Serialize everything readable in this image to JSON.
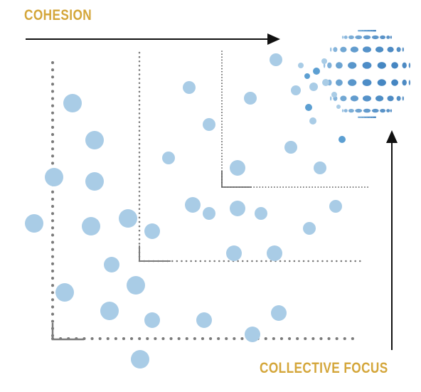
{
  "labels": {
    "cohesion": "COHESION",
    "collective_focus": "COLLECTIVE FOCUS"
  },
  "colors": {
    "label_gold": "#D4A63A",
    "dot_light_blue": "#A9CCE6",
    "sphere_blue": "#2F7DC0",
    "sphere_light": "#8FBFE3",
    "bracket_gray": "#7A7A7A",
    "arrow_black": "#111111"
  },
  "icons": {
    "sphere": "dotted-globe-icon",
    "arrow_cohesion": "arrow-right-icon",
    "arrow_focus": "arrow-up-icon"
  }
}
